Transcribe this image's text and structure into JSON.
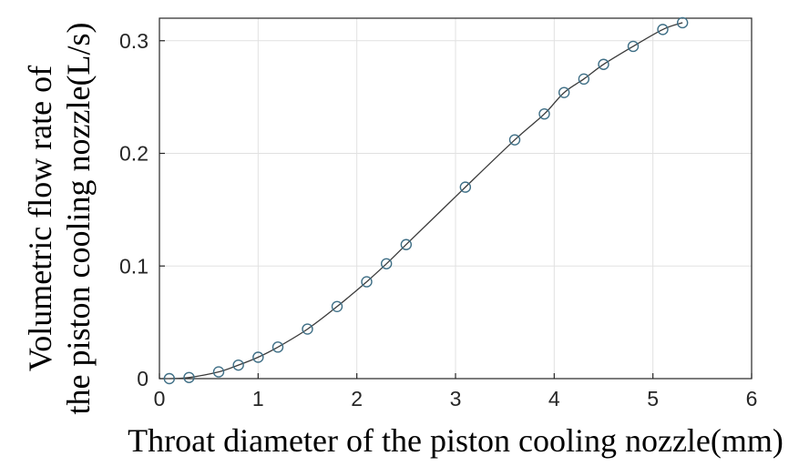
{
  "chart_data": {
    "type": "scatter",
    "xlabel": "Throat diameter of the piston cooling nozzle(mm)",
    "ylabel_line1": "Volumetric flow rate of",
    "ylabel_line2": "the piston cooling nozzle(L/s)",
    "xlim": [
      0,
      6
    ],
    "ylim": [
      0,
      0.32
    ],
    "xticks": [
      0,
      1,
      2,
      3,
      4,
      5,
      6
    ],
    "xtick_labels": [
      "0",
      "1",
      "2",
      "3",
      "4",
      "5",
      "6"
    ],
    "yticks": [
      0,
      0.1,
      0.2,
      0.3
    ],
    "ytick_labels": [
      "0",
      "0.1",
      "0.2",
      "0.3"
    ],
    "grid": true,
    "series": [
      {
        "marker": "circle",
        "color": "#3f6f86",
        "x": [
          0.1,
          0.3,
          0.6,
          0.8,
          1.0,
          1.2,
          1.5,
          1.8,
          2.1,
          2.3,
          2.5,
          3.1,
          3.6,
          3.9,
          4.1,
          4.3,
          4.5,
          4.8,
          5.1,
          5.3
        ],
        "y": [
          0.0,
          0.001,
          0.006,
          0.012,
          0.019,
          0.028,
          0.044,
          0.064,
          0.086,
          0.102,
          0.119,
          0.17,
          0.212,
          0.235,
          0.254,
          0.266,
          0.279,
          0.295,
          0.31,
          0.316
        ]
      },
      {
        "line": "solid",
        "color": "#3a3a3a",
        "x": [
          0.1,
          0.3,
          0.6,
          0.8,
          1.0,
          1.2,
          1.5,
          1.8,
          2.1,
          2.3,
          2.5,
          3.1,
          3.6,
          3.9,
          4.1,
          4.3,
          4.5,
          4.8,
          5.1,
          5.3
        ],
        "y": [
          0.0,
          0.001,
          0.006,
          0.012,
          0.019,
          0.028,
          0.044,
          0.064,
          0.086,
          0.102,
          0.119,
          0.17,
          0.212,
          0.235,
          0.254,
          0.266,
          0.279,
          0.295,
          0.31,
          0.316
        ]
      }
    ]
  }
}
